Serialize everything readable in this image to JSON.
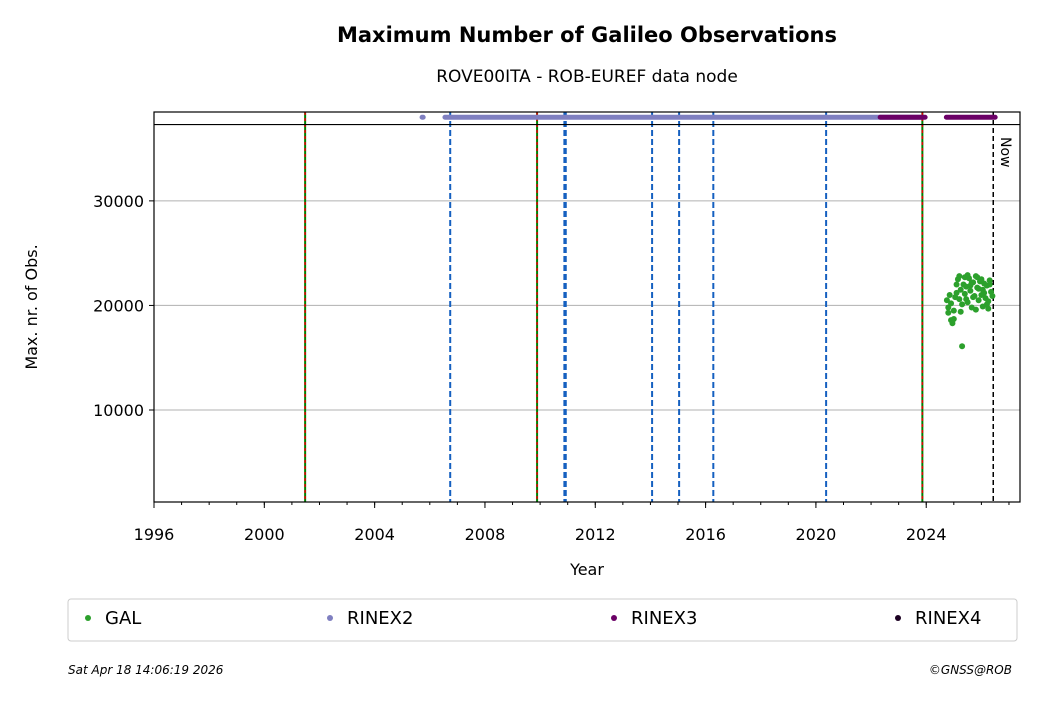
{
  "chart_data": {
    "type": "scatter",
    "title": "Maximum Number of Galileo Observations",
    "subtitle": "ROVE00ITA - ROB-EUREF data node",
    "x_label": "Year",
    "y_label": "Max. nr. of Obs.",
    "xlim": [
      1996,
      2027.4
    ],
    "ylim": [
      1200,
      38500
    ],
    "xticks": [
      1996,
      2000,
      2004,
      2008,
      2012,
      2016,
      2020,
      2024
    ],
    "yticks": [
      10000,
      20000,
      30000
    ],
    "grid": true,
    "hline": 37300,
    "series": [
      {
        "name": "GAL",
        "color": "#2ca02c",
        "x": [
          2024.75,
          2024.8,
          2024.85,
          2024.9,
          2024.95,
          2025.0,
          2025.05,
          2025.1,
          2025.15,
          2025.2,
          2025.25,
          2025.3,
          2025.3,
          2025.35,
          2025.4,
          2025.45,
          2025.5,
          2025.55,
          2025.6,
          2025.65,
          2025.7,
          2025.75,
          2025.8,
          2025.85,
          2025.9,
          2025.95,
          2026.0,
          2026.05,
          2026.1,
          2026.15,
          2026.2,
          2026.25,
          2026.3,
          2026.35,
          2026.4,
          2024.8,
          2024.9,
          2025.0,
          2025.1,
          2025.2,
          2025.4,
          2025.5,
          2025.6,
          2025.7,
          2025.8,
          2025.9,
          2026.0,
          2026.1,
          2026.2,
          2026.3,
          2025.25,
          2025.45,
          2025.65,
          2025.85,
          2026.05,
          2026.25
        ],
        "values": [
          20500,
          19800,
          21000,
          18600,
          18300,
          19500,
          20800,
          21200,
          22500,
          22800,
          21500,
          16100,
          20100,
          22000,
          22700,
          21800,
          20300,
          22600,
          21400,
          19800,
          22200,
          20900,
          22800,
          21700,
          20500,
          22300,
          21000,
          19900,
          22100,
          20700,
          21900,
          20400,
          22400,
          21300,
          20900,
          19300,
          20200,
          18700,
          22000,
          20600,
          21100,
          22900,
          21900,
          20800,
          19600,
          21600,
          22500,
          21200,
          20100,
          22000,
          19400,
          20600,
          22200,
          22700,
          21500,
          19700
        ]
      },
      {
        "name": "RINEX2",
        "color": "#7f7fc0",
        "y": 38000,
        "segments": [
          [
            2005.72,
            2005.76
          ],
          [
            2006.55,
            2023.78
          ]
        ]
      },
      {
        "name": "RINEX3",
        "color": "#6b0066",
        "y": 38000,
        "segments": [
          [
            2022.33,
            2023.96
          ],
          [
            2024.73,
            2026.5
          ]
        ]
      },
      {
        "name": "RINEX4",
        "color": "#1c0022",
        "y": 38000,
        "segments": []
      }
    ],
    "vlines": [
      {
        "x": 2001.48,
        "style": "red-green"
      },
      {
        "x": 2006.74,
        "style": "blue"
      },
      {
        "x": 2009.89,
        "style": "red-green"
      },
      {
        "x": 2010.88,
        "style": "blue"
      },
      {
        "x": 2010.93,
        "style": "blue"
      },
      {
        "x": 2014.06,
        "style": "blue"
      },
      {
        "x": 2015.04,
        "style": "blue"
      },
      {
        "x": 2016.28,
        "style": "blue"
      },
      {
        "x": 2020.37,
        "style": "blue"
      },
      {
        "x": 2023.86,
        "style": "red-green"
      }
    ],
    "now": {
      "x": 2026.43,
      "label": "Now"
    },
    "footer_left": "Sat Apr 18 14:06:19 2026",
    "footer_right": "©GNSS@ROB"
  }
}
